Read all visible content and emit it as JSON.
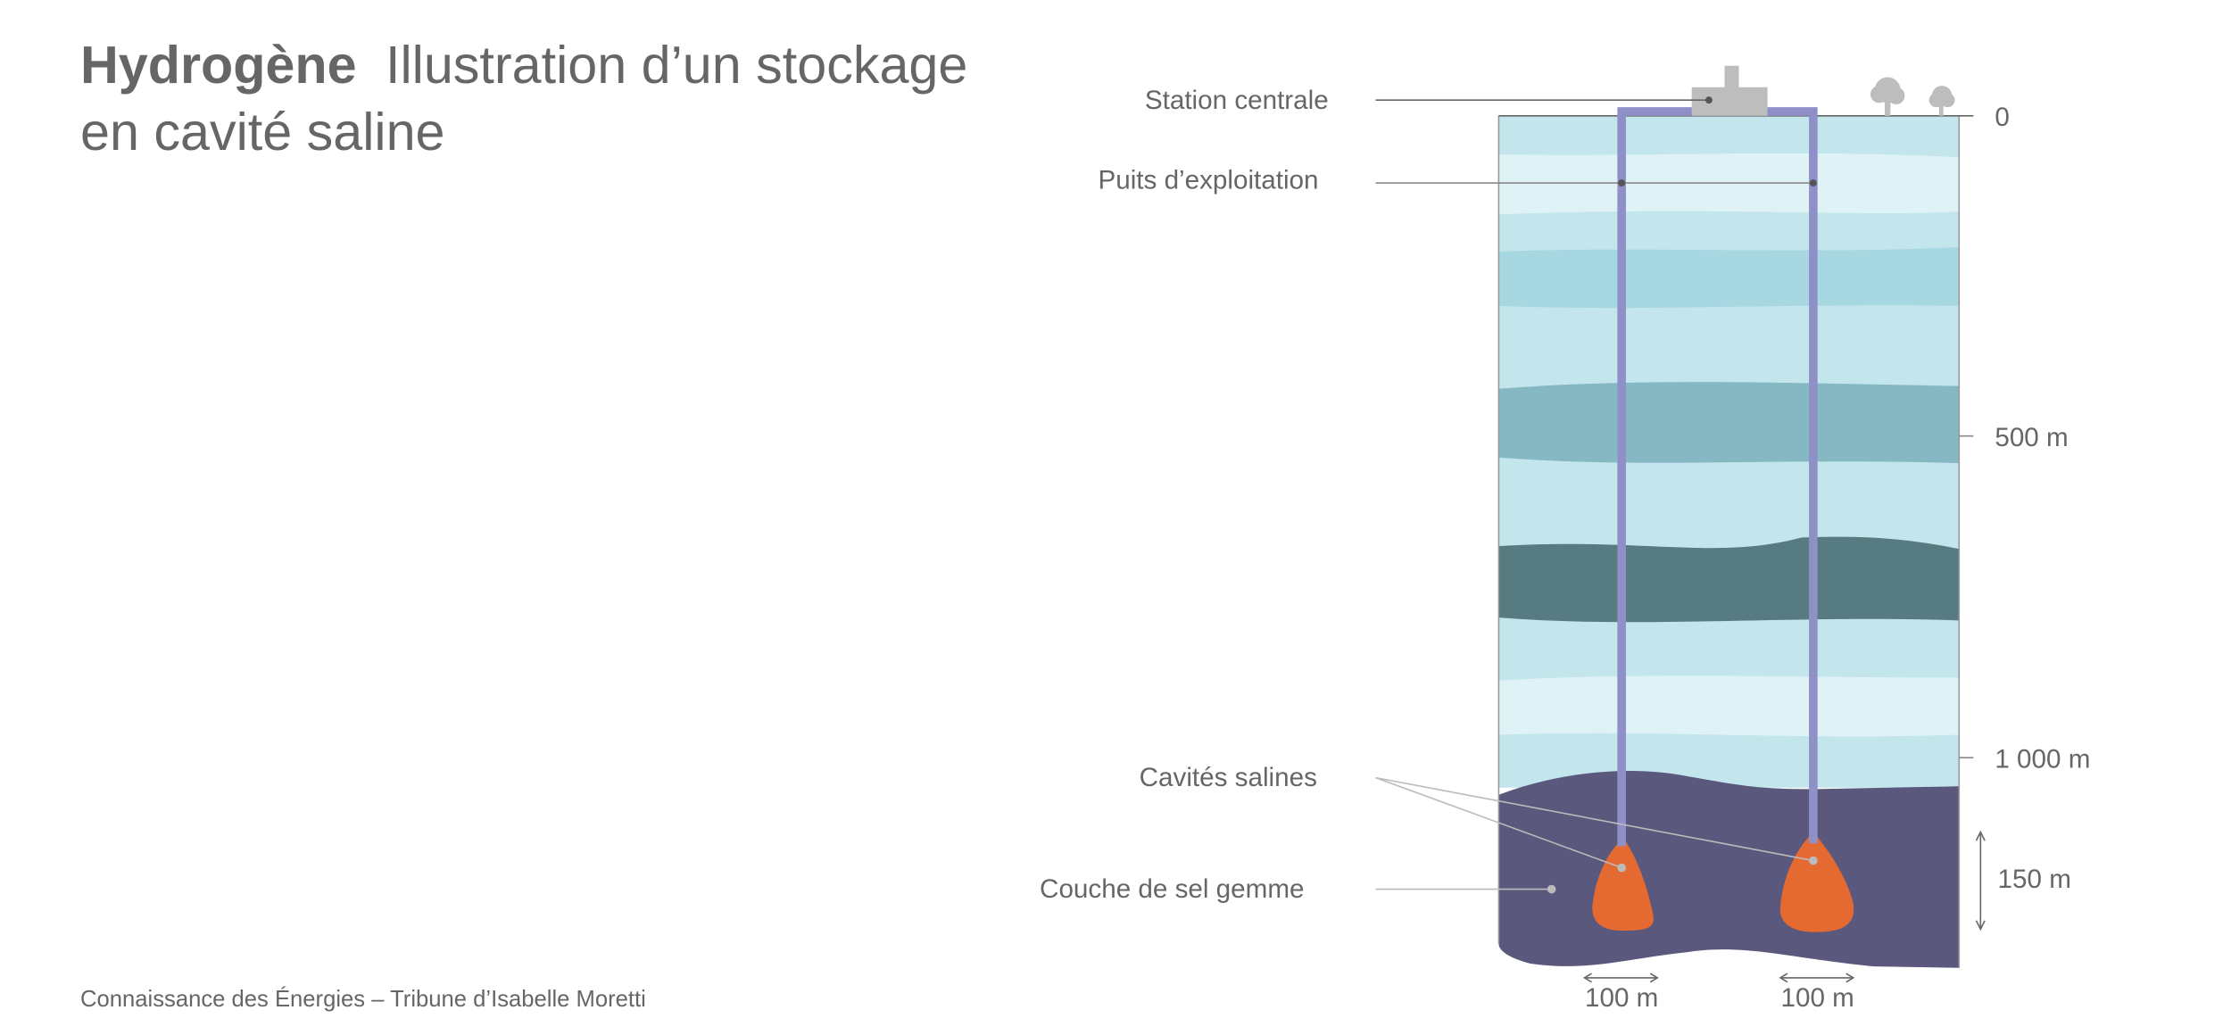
{
  "title": {
    "bold": "Hydrogène",
    "line1": "Illustration d’un stockage",
    "line2": "en cavité saline"
  },
  "labels": {
    "station": "Station centrale",
    "wells": "Puits d’exploitation",
    "cavities": "Cavités salines",
    "salt_layer": "Couche de sel gemme"
  },
  "depth_axis": {
    "ticks": [
      "0",
      "500 m",
      "1 000 m"
    ],
    "cavity_height": "150 m"
  },
  "widths": [
    "100 m",
    "100 m"
  ],
  "footer": "Connaissance des Énergies – Tribune d’Isabelle Moretti",
  "colors": {
    "text": "#666666",
    "well_pipe": "#9090c8",
    "cavity": "#e46a32",
    "salt_layer": "#5b587e",
    "strata_light": "#c3e5ec",
    "strata_pale": "#dff3f6",
    "strata_mid": "#a7d8e2",
    "strata_teal": "#86b8c4",
    "strata_dark": "#567b80",
    "station": "#bdbdbd"
  }
}
